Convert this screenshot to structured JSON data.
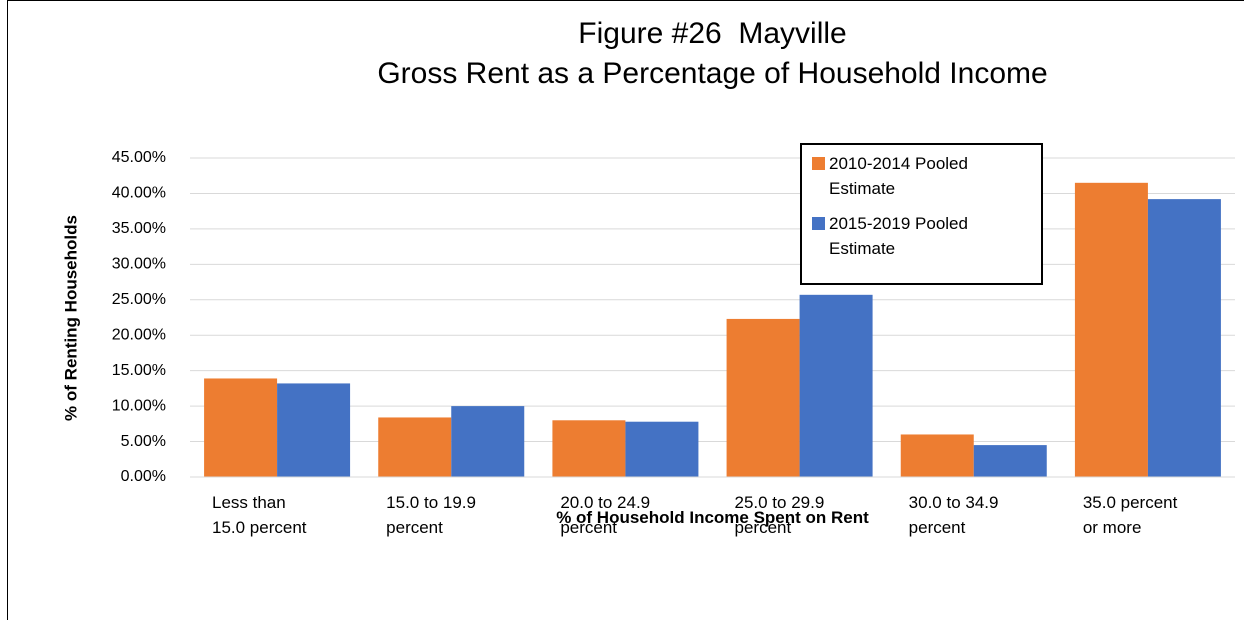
{
  "chart_data": {
    "type": "bar",
    "title": "Figure #26  Mayville\nGross Rent as a Percentage of Household Income",
    "x_label": "% of Household Income Spent on Rent",
    "y_label": "% of Renting Households",
    "categories": [
      "Less than\n15.0 percent",
      "15.0 to 19.9\npercent",
      "20.0 to 24.9\npercent",
      "25.0 to 29.9\npercent",
      "30.0 to 34.9\npercent",
      "35.0 percent\nor more"
    ],
    "series": [
      {
        "name": "2010-2014 Pooled Estimate",
        "color": "#ed7d31",
        "values": [
          13.9,
          8.4,
          8.0,
          22.3,
          6.0,
          41.5
        ]
      },
      {
        "name": "2015-2019 Pooled Estimate",
        "color": "#4472c4",
        "values": [
          13.2,
          10.0,
          7.8,
          25.7,
          4.5,
          39.2
        ]
      }
    ],
    "ylim": [
      0,
      45
    ],
    "yticks": [
      {
        "value": 0,
        "label": "0.00%"
      },
      {
        "value": 5,
        "label": "5.00%"
      },
      {
        "value": 10,
        "label": "10.00%"
      },
      {
        "value": 15,
        "label": "15.00%"
      },
      {
        "value": 20,
        "label": "20.00%"
      },
      {
        "value": 25,
        "label": "25.00%"
      },
      {
        "value": 30,
        "label": "30.00%"
      },
      {
        "value": 35,
        "label": "35.00%"
      },
      {
        "value": 40,
        "label": "40.00%"
      },
      {
        "value": 45,
        "label": "45.00%"
      }
    ],
    "grid": true,
    "legend": "upper right"
  }
}
